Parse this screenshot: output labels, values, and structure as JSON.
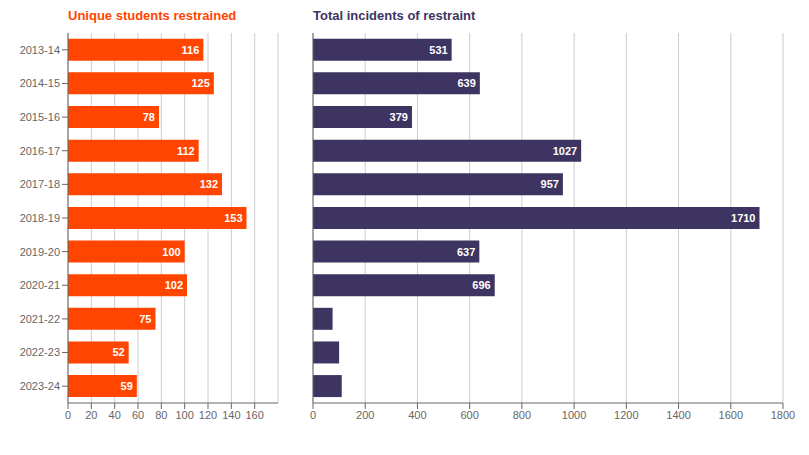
{
  "chart_data": [
    {
      "type": "bar",
      "orientation": "horizontal",
      "title": "Unique students restrained",
      "categories": [
        "2013-14",
        "2014-15",
        "2015-16",
        "2016-17",
        "2017-18",
        "2018-19",
        "2019-20",
        "2020-21",
        "2021-22",
        "2022-23",
        "2023-24"
      ],
      "values": [
        116,
        125,
        78,
        112,
        132,
        153,
        100,
        102,
        75,
        52,
        59
      ],
      "color": "#FF4500",
      "xlim": [
        0,
        180
      ],
      "xticks": [
        0,
        20,
        40,
        60,
        80,
        100,
        120,
        140,
        160
      ],
      "grid": true,
      "data_labels": true
    },
    {
      "type": "bar",
      "orientation": "horizontal",
      "title": "Total incidents of restraint",
      "categories": [
        "2013-14",
        "2014-15",
        "2015-16",
        "2016-17",
        "2017-18",
        "2018-19",
        "2019-20",
        "2020-21",
        "2021-22",
        "2022-23",
        "2023-24"
      ],
      "values": [
        531,
        639,
        379,
        1027,
        957,
        1710,
        637,
        696,
        75,
        100,
        110
      ],
      "value_labels": [
        "531",
        "639",
        "379",
        "1027",
        "957",
        "1710",
        "637",
        "696",
        null,
        null,
        null
      ],
      "color": "#3D3461",
      "xlim": [
        0,
        1800
      ],
      "xticks": [
        0,
        200,
        400,
        600,
        800,
        1000,
        1200,
        1400,
        1600,
        1800
      ],
      "grid": true,
      "data_labels": true,
      "tick_labels": "x"
    }
  ]
}
